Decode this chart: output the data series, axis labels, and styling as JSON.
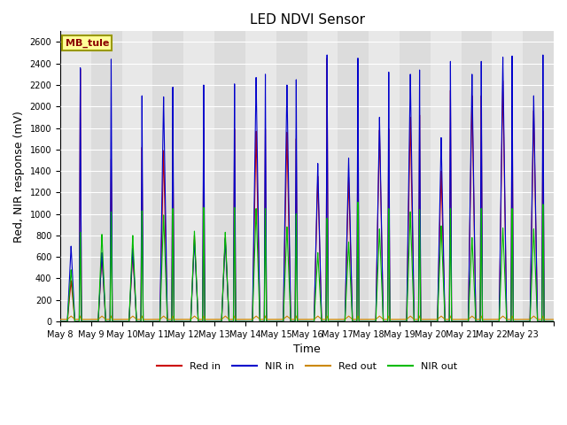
{
  "title": "LED NDVI Sensor",
  "xlabel": "Time",
  "ylabel": "Red, NIR response (mV)",
  "ylim": [
    0,
    2700
  ],
  "yticks": [
    0,
    200,
    400,
    600,
    800,
    1000,
    1200,
    1400,
    1600,
    1800,
    2000,
    2200,
    2400,
    2600
  ],
  "legend_labels": [
    "Red in",
    "NIR in",
    "Red out",
    "NIR out"
  ],
  "legend_colors": [
    "#cc0000",
    "#0000cc",
    "#cc8800",
    "#00bb00"
  ],
  "watermark_text": "MB_tule",
  "plot_bg_color": "#dcdcdc",
  "alt_band_color": "#e8e8e8",
  "days": [
    "May 8",
    "May 9",
    "May 10",
    "May 11",
    "May 12",
    "May 13",
    "May 14",
    "May 15",
    "May 16",
    "May 17",
    "May 18",
    "May 19",
    "May 20",
    "May 21",
    "May 22",
    "May 23"
  ],
  "n_days": 16,
  "peaks_red_in": [
    2350,
    1510,
    1620,
    1840,
    1800,
    1790,
    1790,
    1700,
    2450,
    1760,
    1790,
    1920,
    2150,
    2100,
    2250,
    1960
  ],
  "peaks_nir_in": [
    2360,
    2440,
    2100,
    2180,
    2200,
    2210,
    2300,
    2250,
    2480,
    2450,
    2320,
    2340,
    2420,
    2420,
    2470,
    2480
  ],
  "peaks_nir_out": [
    830,
    1020,
    1030,
    1050,
    1060,
    1060,
    1050,
    1000,
    960,
    1110,
    1050,
    1040,
    1050,
    1050,
    1050,
    1090
  ],
  "shoulder_red_in": [
    380,
    620,
    640,
    1590,
    800,
    780,
    1770,
    1760,
    1350,
    1340,
    1780,
    1900,
    1400,
    2100,
    2240,
    1960
  ],
  "shoulder_nir_in": [
    700,
    640,
    680,
    2090,
    760,
    770,
    2270,
    2200,
    1470,
    1520,
    1900,
    2300,
    1710,
    2300,
    2460,
    2100
  ],
  "shoulder_nir_out": [
    480,
    810,
    800,
    990,
    840,
    830,
    1050,
    880,
    640,
    740,
    860,
    1020,
    890,
    780,
    870,
    860
  ],
  "red_out_base": 20,
  "red_out_bump": 30
}
